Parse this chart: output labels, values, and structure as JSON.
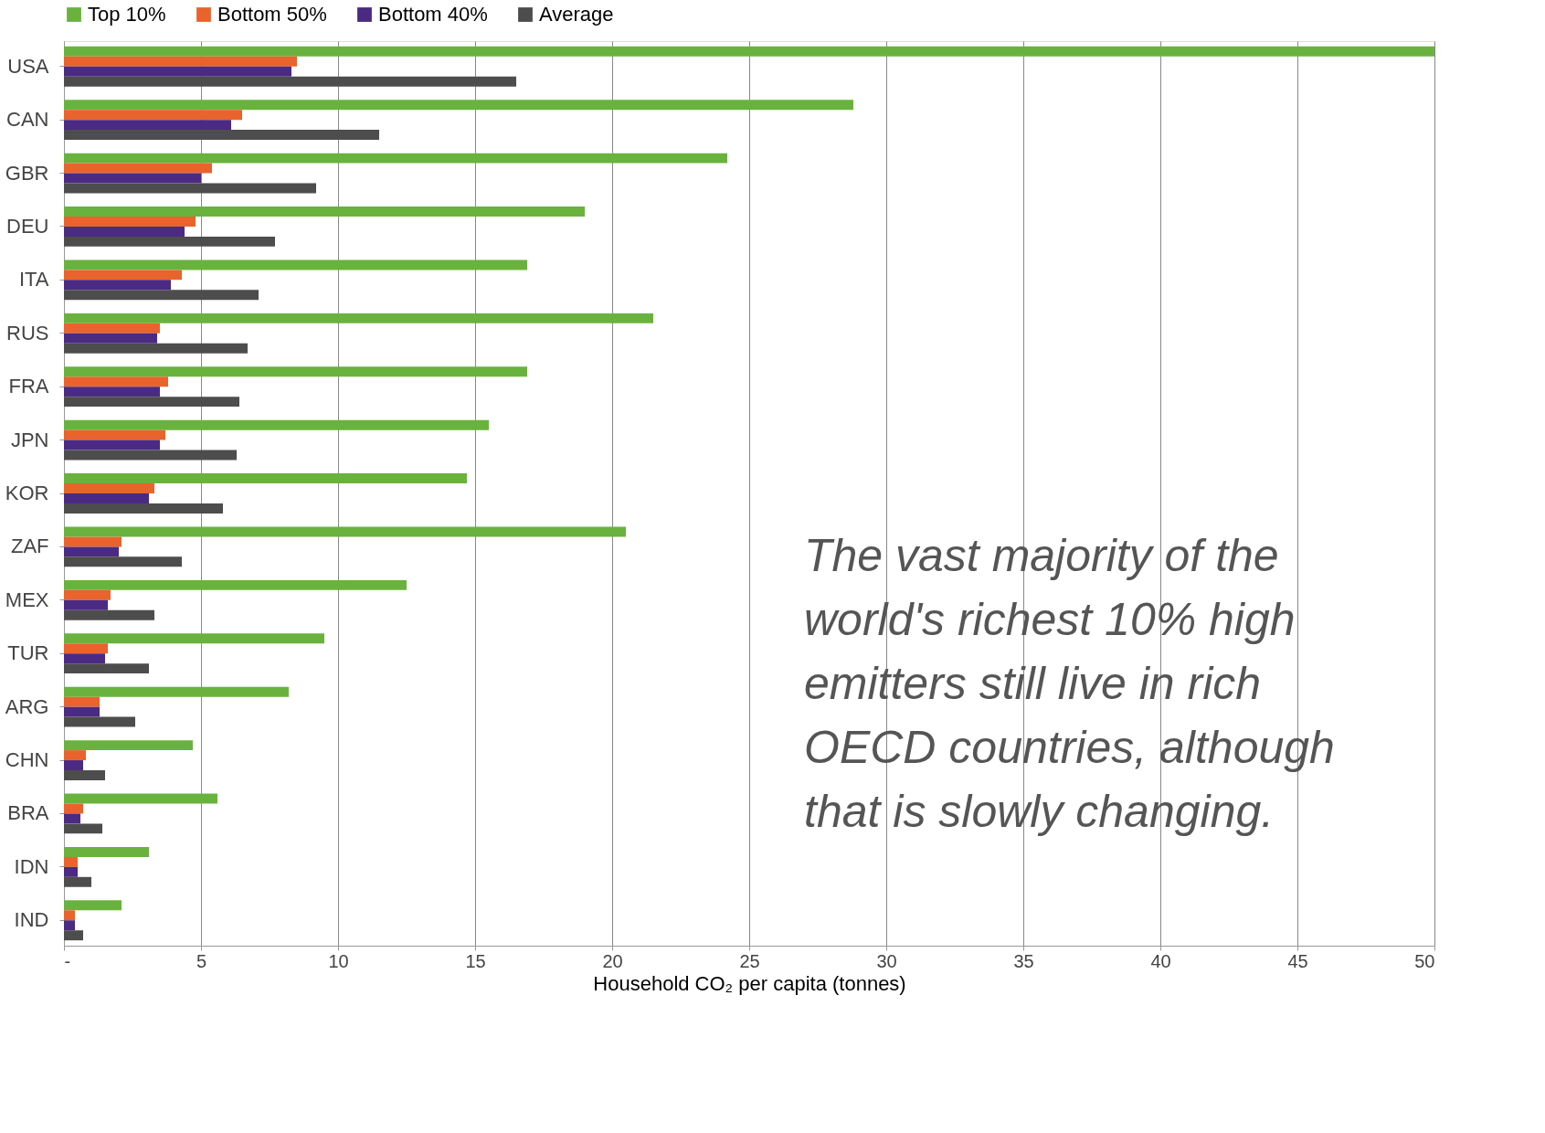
{
  "chart_data": {
    "type": "bar",
    "orientation": "horizontal",
    "xlabel": "Household CO₂ per capita (tonnes)",
    "categories": [
      "USA",
      "CAN",
      "GBR",
      "DEU",
      "ITA",
      "RUS",
      "FRA",
      "JPN",
      "KOR",
      "ZAF",
      "MEX",
      "TUR",
      "ARG",
      "CHN",
      "BRA",
      "IDN",
      "IND"
    ],
    "series": [
      {
        "name": "Top 10%",
        "color": "#6ab23e",
        "values": [
          50,
          28.8,
          24.2,
          19.0,
          16.9,
          21.5,
          16.9,
          15.5,
          14.7,
          20.5,
          12.5,
          9.5,
          8.2,
          4.7,
          5.6,
          3.1,
          2.1
        ]
      },
      {
        "name": "Bottom 50%",
        "color": "#e8642c",
        "values": [
          8.5,
          6.5,
          5.4,
          4.8,
          4.3,
          3.5,
          3.8,
          3.7,
          3.3,
          2.1,
          1.7,
          1.6,
          1.3,
          0.8,
          0.7,
          0.5,
          0.4
        ]
      },
      {
        "name": "Bottom 40%",
        "color": "#4b2a83",
        "values": [
          8.3,
          6.1,
          5.0,
          4.4,
          3.9,
          3.4,
          3.5,
          3.5,
          3.1,
          2.0,
          1.6,
          1.5,
          1.3,
          0.7,
          0.6,
          0.5,
          0.4
        ]
      },
      {
        "name": "Average",
        "color": "#4d4d4d",
        "values": [
          16.5,
          11.5,
          9.2,
          7.7,
          7.1,
          6.7,
          6.4,
          6.3,
          5.8,
          4.3,
          3.3,
          3.1,
          2.6,
          1.5,
          1.4,
          1.0,
          0.7
        ]
      }
    ],
    "xlim": [
      0,
      50
    ],
    "xticks": [
      {
        "value": 0,
        "label": "-"
      },
      5,
      10,
      15,
      20,
      25,
      30,
      35,
      40,
      45,
      50
    ],
    "grid": "x",
    "legend": "top",
    "annotations": [
      "The vast majority of the world's richest 10% high emitters still live in rich OECD countries, although that is slowly changing."
    ]
  }
}
